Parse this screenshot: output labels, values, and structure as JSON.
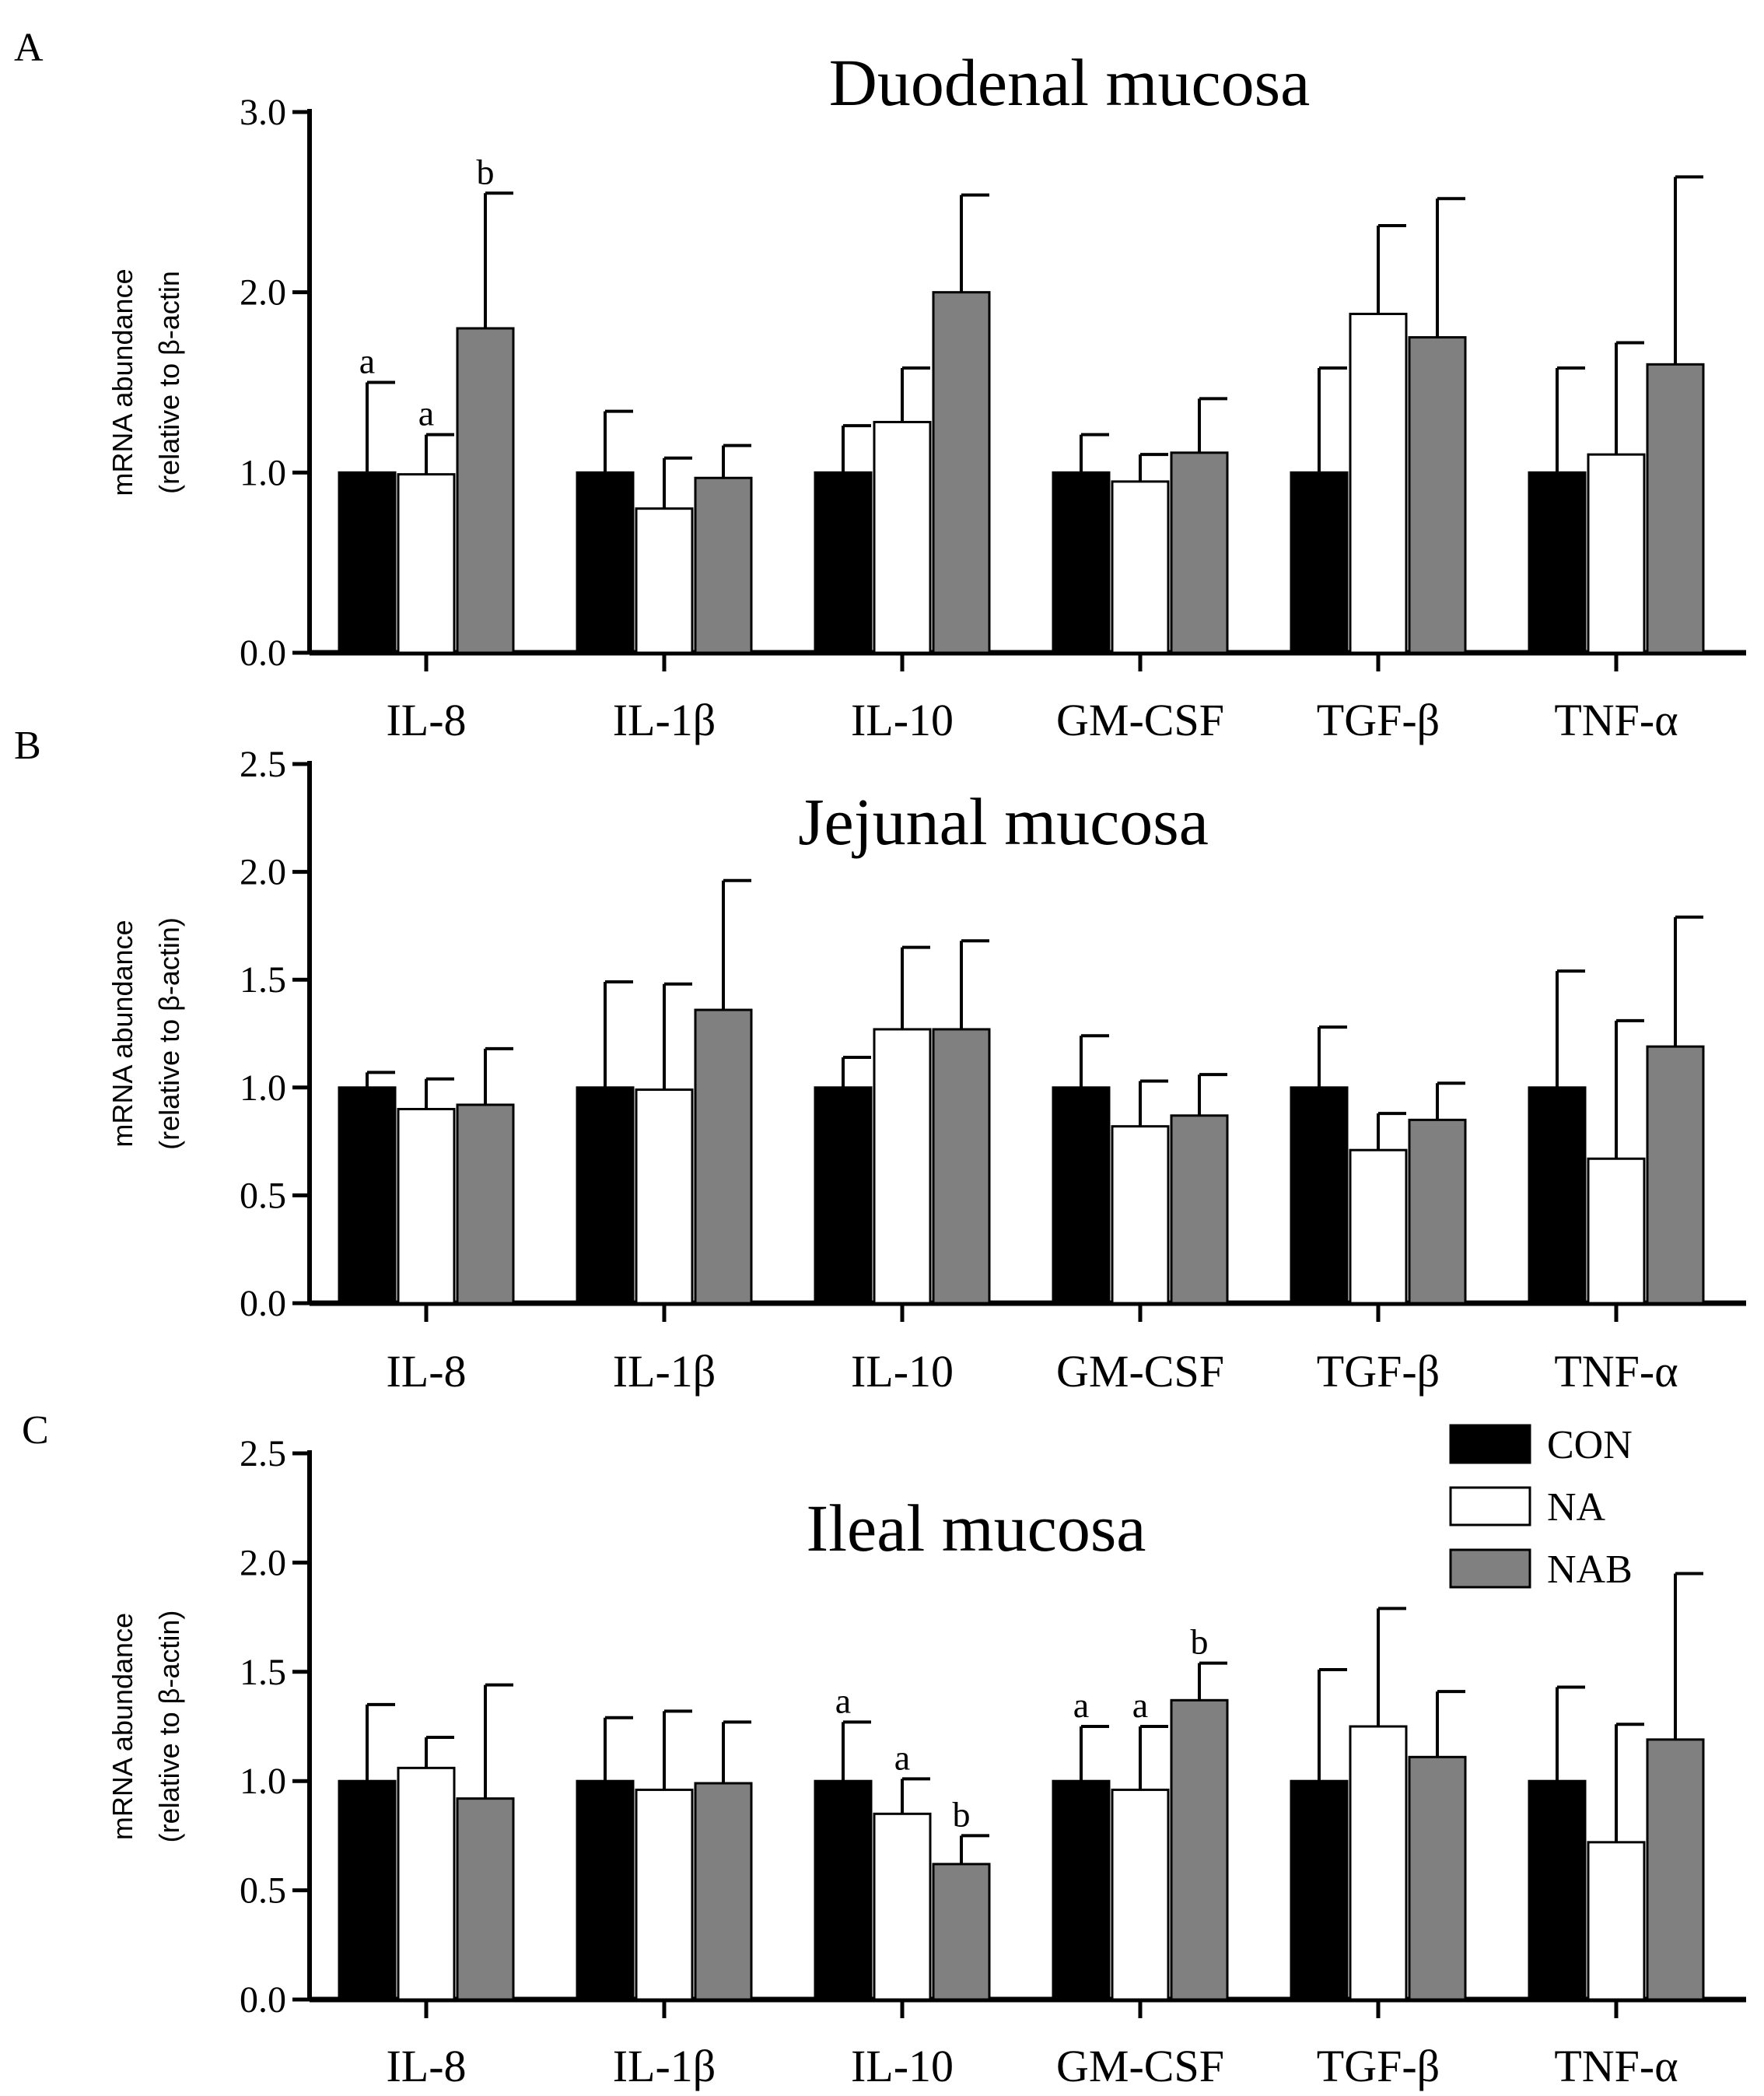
{
  "colors": {
    "CON": "#000000",
    "NA": "#ffffff",
    "NAB": "#808080",
    "stroke": "#000000"
  },
  "legend": [
    {
      "key": "CON",
      "label": "CON"
    },
    {
      "key": "NA",
      "label": "NA"
    },
    {
      "key": "NAB",
      "label": "NAB"
    }
  ],
  "chart_data": [
    {
      "type": "bar",
      "panel": "A",
      "title": "Duodenal mucosa",
      "ylabel": [
        "mRNA abundance",
        "(relative to β-actin"
      ],
      "ylim": [
        0,
        3.0
      ],
      "yticks": [
        "0.0",
        "1.0",
        "2.0",
        "3.0"
      ],
      "categories": [
        "IL-8",
        "IL-1β",
        "IL-10",
        "GM-CSF",
        "TGF-β",
        "TNF-α"
      ],
      "series": [
        {
          "name": "CON",
          "values": [
            1.0,
            1.0,
            1.0,
            1.0,
            1.0,
            1.0
          ],
          "errors": [
            0.5,
            0.34,
            0.26,
            0.21,
            0.58,
            0.58
          ]
        },
        {
          "name": "NA",
          "values": [
            0.99,
            0.8,
            1.28,
            0.95,
            1.88,
            1.1
          ],
          "errors": [
            0.22,
            0.28,
            0.3,
            0.15,
            0.49,
            0.62
          ]
        },
        {
          "name": "NAB",
          "values": [
            1.8,
            0.97,
            2.0,
            1.11,
            1.75,
            1.6
          ],
          "errors": [
            0.75,
            0.18,
            0.54,
            0.3,
            0.77,
            1.04
          ]
        }
      ],
      "annotations": [
        {
          "category": 0,
          "series": 0,
          "text": "a"
        },
        {
          "category": 0,
          "series": 1,
          "text": "a"
        },
        {
          "category": 0,
          "series": 2,
          "text": "b"
        }
      ]
    },
    {
      "type": "bar",
      "panel": "B",
      "title": "Jejunal mucosa",
      "ylabel": [
        "mRNA abundance",
        "(relative to β-actin)"
      ],
      "ylim": [
        0,
        2.5
      ],
      "yticks": [
        "0.0",
        "0.5",
        "1.0",
        "1.5",
        "2.0",
        "2.5"
      ],
      "categories": [
        "IL-8",
        "IL-1β",
        "IL-10",
        "GM-CSF",
        "TGF-β",
        "TNF-α"
      ],
      "series": [
        {
          "name": "CON",
          "values": [
            1.0,
            1.0,
            1.0,
            1.0,
            1.0,
            1.0
          ],
          "errors": [
            0.07,
            0.49,
            0.14,
            0.24,
            0.28,
            0.54
          ]
        },
        {
          "name": "NA",
          "values": [
            0.9,
            0.99,
            1.27,
            0.82,
            0.71,
            0.67
          ],
          "errors": [
            0.14,
            0.49,
            0.38,
            0.21,
            0.17,
            0.64
          ]
        },
        {
          "name": "NAB",
          "values": [
            0.92,
            1.36,
            1.27,
            0.87,
            0.85,
            1.19
          ],
          "errors": [
            0.26,
            0.6,
            0.41,
            0.19,
            0.17,
            0.6
          ]
        }
      ],
      "annotations": []
    },
    {
      "type": "bar",
      "panel": "C",
      "title": "Ileal mucosa",
      "ylabel": [
        "mRNA abundance",
        "(relative to β-actin)"
      ],
      "ylim": [
        0,
        2.5
      ],
      "yticks": [
        "0.0",
        "0.5",
        "1.0",
        "1.5",
        "2.0",
        "2.5"
      ],
      "categories": [
        "IL-8",
        "IL-1β",
        "IL-10",
        "GM-CSF",
        "TGF-β",
        "TNF-α"
      ],
      "series": [
        {
          "name": "CON",
          "values": [
            1.0,
            1.0,
            1.0,
            1.0,
            1.0,
            1.0
          ],
          "errors": [
            0.35,
            0.29,
            0.27,
            0.25,
            0.51,
            0.43
          ]
        },
        {
          "name": "NA",
          "values": [
            1.06,
            0.96,
            0.85,
            0.96,
            1.25,
            0.72
          ],
          "errors": [
            0.14,
            0.36,
            0.16,
            0.29,
            0.54,
            0.54
          ]
        },
        {
          "name": "NAB",
          "values": [
            0.92,
            0.99,
            0.62,
            1.37,
            1.11,
            1.19
          ],
          "errors": [
            0.52,
            0.28,
            0.13,
            0.17,
            0.3,
            0.76
          ]
        }
      ],
      "annotations": [
        {
          "category": 2,
          "series": 0,
          "text": "a"
        },
        {
          "category": 2,
          "series": 1,
          "text": "a"
        },
        {
          "category": 2,
          "series": 2,
          "text": "b"
        },
        {
          "category": 3,
          "series": 0,
          "text": "a"
        },
        {
          "category": 3,
          "series": 1,
          "text": "a"
        },
        {
          "category": 3,
          "series": 2,
          "text": "b"
        }
      ]
    }
  ]
}
